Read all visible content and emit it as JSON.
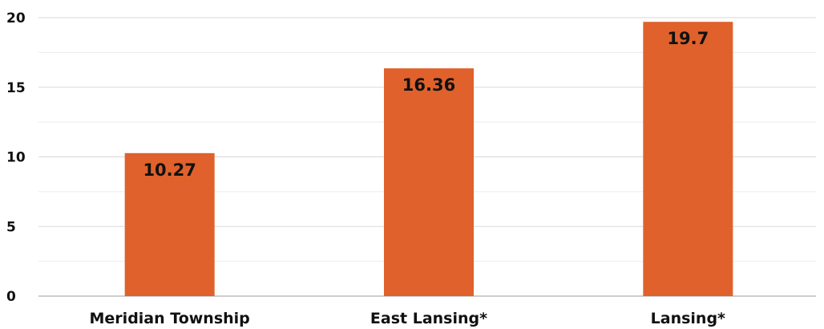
{
  "chart_data": {
    "type": "bar",
    "categories": [
      "Meridian Township",
      "East Lansing*",
      "Lansing*"
    ],
    "values": [
      10.27,
      16.36,
      19.7
    ],
    "data_labels": [
      "10.27",
      "16.36",
      "19.7"
    ],
    "yticks": [
      "0",
      "5",
      "10",
      "15",
      "20"
    ],
    "ylim": [
      0,
      20
    ],
    "grid": "major-and-minor-horizontal",
    "bar_color": "#e0612b",
    "title": "",
    "xlabel": "",
    "ylabel": ""
  }
}
